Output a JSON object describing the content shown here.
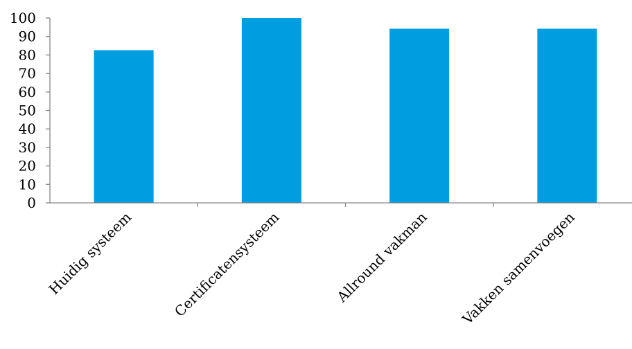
{
  "chart_data": {
    "type": "bar",
    "title": "",
    "xlabel": "",
    "ylabel": "",
    "categories": [
      "Huidig systeem",
      "Certificatensysteem",
      "Allround vakman",
      "Vakken samenvoegen"
    ],
    "values": [
      82.6,
      100,
      94.2,
      94.2
    ],
    "ylim": [
      0,
      100
    ],
    "yticks": [
      0,
      10,
      20,
      30,
      40,
      50,
      60,
      70,
      80,
      90,
      100
    ],
    "ytick_labels": [
      "0",
      "10",
      "20",
      "30",
      "40",
      "50",
      "60",
      "70",
      "80",
      "90",
      "100"
    ],
    "grid": false,
    "legend": "none",
    "bar_color": "#009de0",
    "axis_color": "#868686"
  }
}
